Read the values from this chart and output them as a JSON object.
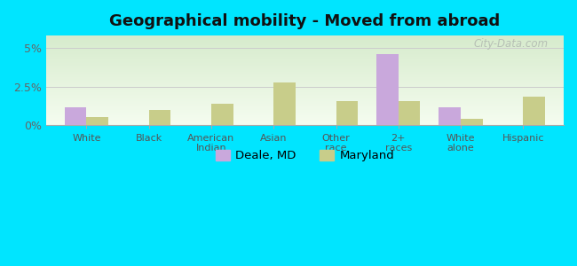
{
  "title": "Geographical mobility - Moved from abroad",
  "categories": [
    "White",
    "Black",
    "American\nIndian",
    "Asian",
    "Other\nrace",
    "2+\nraces",
    "White\nalone",
    "Hispanic"
  ],
  "deale_values": [
    1.2,
    0.0,
    0.0,
    0.0,
    0.0,
    4.6,
    1.2,
    0.0
  ],
  "maryland_values": [
    0.55,
    1.0,
    1.4,
    2.8,
    1.6,
    1.55,
    0.45,
    1.85
  ],
  "deale_color": "#c9a8dc",
  "maryland_color": "#c8cd8a",
  "background_outer": "#00e5ff",
  "background_plot_top": "#f5f8ee",
  "background_plot_bottom": "#deebd0",
  "yticks": [
    0.0,
    2.5,
    5.0
  ],
  "ylabels": [
    "0%",
    "2.5%",
    "5%"
  ],
  "ylim": [
    0,
    5.8
  ],
  "bar_width": 0.35,
  "legend_labels": [
    "Deale, MD",
    "Maryland"
  ],
  "watermark": "City-Data.com"
}
